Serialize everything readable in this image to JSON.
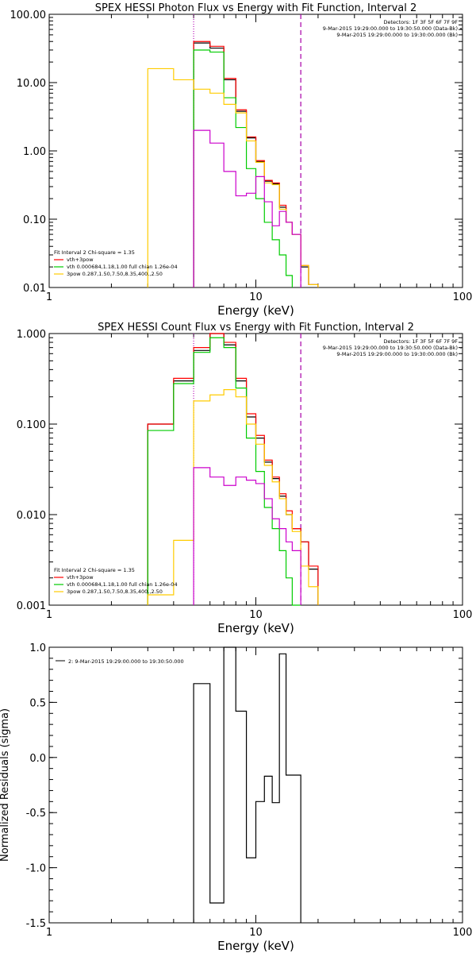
{
  "chart_data": [
    {
      "type": "line",
      "step": true,
      "title": "SPEX HESSI Photon Flux vs Energy with Fit Function, Interval 2",
      "xlabel": "Energy (keV)",
      "ylabel": "",
      "xscale": "log",
      "yscale": "log",
      "xlim": [
        1,
        100
      ],
      "ylim": [
        0.01,
        100
      ],
      "x_ticks": [
        "1",
        "10",
        "100"
      ],
      "y_ticks": [
        "100.00",
        "10.00",
        "1.00",
        "0.10",
        "0.01"
      ],
      "header_right": [
        "Detectors: 1F 3F 5F 6F 7F 9F",
        "9-Mar-2015 19:29:00.000 to 19:30:50.000 (Data-Bk)",
        "9-Mar-2015 19:29:00.000 to 19:30:00.000 (Bk)"
      ],
      "fit_text": [
        "Fit Interval 2   Chi-square = 1.35",
        "vth+3pow",
        "vth 0.000684,1.18,1.00  full chian 1.26e-04",
        "3pow 0.287,1.50,7.50,8.35,400.,2.50"
      ],
      "vlines": [
        {
          "x": 5.0,
          "color": "#000000",
          "style": "dotted"
        },
        {
          "x": 5.0,
          "color": "#cc00cc",
          "style": "dotted"
        },
        {
          "x": 16.5,
          "color": "#000000",
          "style": "dashed"
        },
        {
          "x": 16.5,
          "color": "#cc00cc",
          "style": "dashed"
        }
      ],
      "edges": [
        3,
        4,
        5,
        6,
        7,
        8,
        9,
        10,
        11,
        12,
        13,
        14,
        15,
        16.5,
        18,
        20
      ],
      "series": [
        {
          "color": "#000000",
          "values": [
            null,
            null,
            38,
            32,
            11,
            3.8,
            1.55,
            0.7,
            0.36,
            0.33,
            0.15,
            0.09,
            0.06,
            0.02,
            0.011
          ]
        },
        {
          "color": "#ff0000",
          "values": [
            null,
            null,
            40,
            34,
            11.5,
            4.0,
            1.6,
            0.72,
            0.37,
            0.34,
            0.16,
            0.09,
            0.06,
            0.021,
            0.011
          ]
        },
        {
          "color": "#00cc00",
          "values": [
            null,
            null,
            30,
            28,
            6,
            2.2,
            0.55,
            0.2,
            0.09,
            0.05,
            0.03,
            0.015,
            null,
            null,
            null
          ]
        },
        {
          "color": "#ffcc00",
          "values": [
            16,
            11,
            8,
            7,
            4.8,
            3.6,
            1.4,
            0.68,
            0.34,
            0.32,
            0.14,
            0.09,
            0.06,
            0.021,
            0.011
          ]
        },
        {
          "color": "#cc00cc",
          "values": [
            null,
            null,
            2.0,
            1.3,
            0.5,
            0.22,
            0.24,
            0.42,
            0.18,
            0.08,
            0.13,
            0.09,
            0.06,
            null,
            null
          ]
        }
      ]
    },
    {
      "type": "line",
      "step": true,
      "title": "SPEX HESSI Count Flux vs Energy with Fit Function, Interval 2",
      "xlabel": "Energy (keV)",
      "ylabel": "",
      "xscale": "log",
      "yscale": "log",
      "xlim": [
        1,
        100
      ],
      "ylim": [
        0.001,
        1
      ],
      "x_ticks": [
        "1",
        "10",
        "100"
      ],
      "y_ticks": [
        "1.000",
        "0.100",
        "0.010",
        "0.001"
      ],
      "header_right": [
        "Detectors: 1F 3F 5F 6F 7F 9F",
        "9-Mar-2015 19:29:00.000 to 19:30:50.000 (Data-Bk)",
        "9-Mar-2015 19:29:00.000 to 19:30:00.000 (Bk)"
      ],
      "fit_text": [
        "Fit Interval 2   Chi-square = 1.35",
        "vth+3pow",
        "vth 0.000684,1.18,1.00  full chian 1.26e-04",
        "3pow 0.287,1.50,7.50,8.35,400.,2.50"
      ],
      "vlines": [
        {
          "x": 5.0,
          "color": "#000000",
          "style": "dotted"
        },
        {
          "x": 5.0,
          "color": "#cc00cc",
          "style": "dotted"
        },
        {
          "x": 16.5,
          "color": "#000000",
          "style": "dashed"
        },
        {
          "x": 16.5,
          "color": "#cc00cc",
          "style": "dashed"
        }
      ],
      "edges": [
        3,
        4,
        5,
        6,
        7,
        8,
        9,
        10,
        11,
        12,
        13,
        14,
        15,
        16.5,
        18,
        20
      ],
      "series": [
        {
          "color": "#000000",
          "values": [
            0.1,
            0.3,
            0.65,
            1.0,
            0.75,
            0.3,
            0.12,
            0.07,
            0.038,
            0.025,
            0.016,
            0.01,
            0.007,
            0.005,
            0.0025
          ]
        },
        {
          "color": "#ff0000",
          "values": [
            0.1,
            0.32,
            0.7,
            1.0,
            0.8,
            0.32,
            0.13,
            0.075,
            0.04,
            0.026,
            0.017,
            0.011,
            0.007,
            0.005,
            0.0027
          ]
        },
        {
          "color": "#00cc00",
          "values": [
            0.085,
            0.28,
            0.62,
            0.9,
            0.7,
            0.25,
            0.07,
            0.03,
            0.012,
            0.007,
            0.004,
            0.002,
            0.001,
            null,
            null
          ]
        },
        {
          "color": "#ffcc00",
          "values": [
            0.0013,
            0.0052,
            0.18,
            0.21,
            0.24,
            0.2,
            0.1,
            0.06,
            0.035,
            0.023,
            0.015,
            0.01,
            0.0065,
            0.0027,
            0.0016
          ]
        },
        {
          "color": "#cc00cc",
          "values": [
            null,
            null,
            0.033,
            0.026,
            0.021,
            0.026,
            0.024,
            0.022,
            0.015,
            0.009,
            0.007,
            0.005,
            0.004,
            null,
            null
          ]
        }
      ]
    },
    {
      "type": "line",
      "step": true,
      "title": "",
      "xlabel": "Energy (keV)",
      "ylabel": "Normalized Residuals (sigma)",
      "xscale": "log",
      "yscale": "linear",
      "xlim": [
        1,
        100
      ],
      "ylim": [
        -1.5,
        1.0
      ],
      "x_ticks": [
        "1",
        "10",
        "100"
      ],
      "y_ticks": [
        "1.0",
        "0.5",
        "0.0",
        "-0.5",
        "-1.0",
        "-1.5"
      ],
      "legend": "2:  9-Mar-2015 19:29:00.000 to 19:30:50.000",
      "edges": [
        5,
        6,
        7,
        8,
        9,
        10,
        11,
        12,
        13,
        14,
        15,
        16.5
      ],
      "series": [
        {
          "color": "#000000",
          "values": [
            0.67,
            -1.32,
            1.0,
            0.42,
            -0.91,
            -0.4,
            -0.17,
            -0.41,
            0.94,
            -0.16,
            -0.16
          ]
        }
      ]
    }
  ]
}
